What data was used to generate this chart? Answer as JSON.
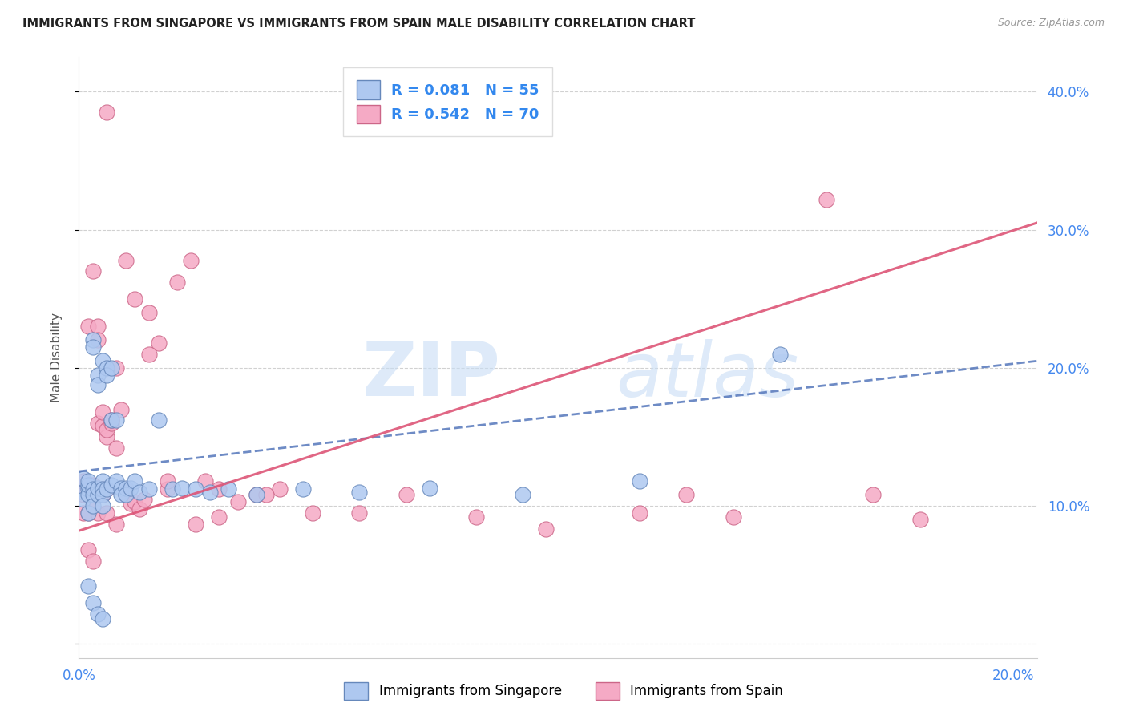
{
  "title": "IMMIGRANTS FROM SINGAPORE VS IMMIGRANTS FROM SPAIN MALE DISABILITY CORRELATION CHART",
  "source": "Source: ZipAtlas.com",
  "ylabel": "Male Disability",
  "xlim": [
    0.0,
    0.205
  ],
  "ylim": [
    -0.01,
    0.425
  ],
  "watermark_zip": "ZIP",
  "watermark_atlas": "atlas",
  "singapore_color": "#aec8f0",
  "spain_color": "#f5aac5",
  "singapore_edge": "#6688bb",
  "spain_edge": "#cc6688",
  "trend_sg_color": "#5577bb",
  "trend_sp_color": "#dd5577",
  "legend_line1": "R = 0.081   N = 55",
  "legend_line2": "R = 0.542   N = 70",
  "sg_x": [
    0.001,
    0.001,
    0.001,
    0.002,
    0.002,
    0.002,
    0.002,
    0.002,
    0.003,
    0.003,
    0.003,
    0.003,
    0.003,
    0.004,
    0.004,
    0.004,
    0.004,
    0.005,
    0.005,
    0.005,
    0.005,
    0.005,
    0.006,
    0.006,
    0.006,
    0.007,
    0.007,
    0.007,
    0.008,
    0.008,
    0.009,
    0.009,
    0.01,
    0.01,
    0.011,
    0.012,
    0.013,
    0.015,
    0.017,
    0.02,
    0.022,
    0.025,
    0.028,
    0.032,
    0.038,
    0.048,
    0.06,
    0.075,
    0.095,
    0.12,
    0.002,
    0.003,
    0.004,
    0.005,
    0.15
  ],
  "sg_y": [
    0.11,
    0.12,
    0.105,
    0.112,
    0.108,
    0.115,
    0.095,
    0.118,
    0.22,
    0.215,
    0.112,
    0.108,
    0.1,
    0.195,
    0.188,
    0.108,
    0.113,
    0.205,
    0.118,
    0.112,
    0.108,
    0.1,
    0.2,
    0.195,
    0.112,
    0.2,
    0.162,
    0.115,
    0.162,
    0.118,
    0.113,
    0.108,
    0.113,
    0.108,
    0.113,
    0.118,
    0.11,
    0.112,
    0.162,
    0.112,
    0.113,
    0.112,
    0.11,
    0.112,
    0.108,
    0.112,
    0.11,
    0.113,
    0.108,
    0.118,
    0.042,
    0.03,
    0.022,
    0.018,
    0.21
  ],
  "sp_x": [
    0.001,
    0.001,
    0.001,
    0.001,
    0.002,
    0.002,
    0.002,
    0.002,
    0.003,
    0.003,
    0.003,
    0.003,
    0.004,
    0.004,
    0.004,
    0.004,
    0.005,
    0.005,
    0.005,
    0.005,
    0.006,
    0.006,
    0.006,
    0.007,
    0.007,
    0.008,
    0.008,
    0.009,
    0.01,
    0.01,
    0.011,
    0.012,
    0.013,
    0.014,
    0.015,
    0.017,
    0.019,
    0.021,
    0.024,
    0.027,
    0.03,
    0.034,
    0.038,
    0.043,
    0.05,
    0.06,
    0.07,
    0.085,
    0.1,
    0.12,
    0.003,
    0.004,
    0.005,
    0.006,
    0.008,
    0.01,
    0.012,
    0.015,
    0.019,
    0.025,
    0.03,
    0.04,
    0.002,
    0.003,
    0.16,
    0.17,
    0.18,
    0.13,
    0.14,
    0.006
  ],
  "sp_y": [
    0.112,
    0.108,
    0.095,
    0.118,
    0.112,
    0.108,
    0.095,
    0.23,
    0.112,
    0.108,
    0.105,
    0.115,
    0.112,
    0.095,
    0.16,
    0.23,
    0.112,
    0.108,
    0.158,
    0.168,
    0.15,
    0.155,
    0.112,
    0.16,
    0.162,
    0.142,
    0.2,
    0.17,
    0.112,
    0.108,
    0.102,
    0.103,
    0.098,
    0.105,
    0.24,
    0.218,
    0.112,
    0.262,
    0.278,
    0.118,
    0.112,
    0.103,
    0.108,
    0.112,
    0.095,
    0.095,
    0.108,
    0.092,
    0.083,
    0.095,
    0.27,
    0.22,
    0.108,
    0.095,
    0.087,
    0.278,
    0.25,
    0.21,
    0.118,
    0.087,
    0.092,
    0.108,
    0.068,
    0.06,
    0.322,
    0.108,
    0.09,
    0.108,
    0.092,
    0.385
  ]
}
